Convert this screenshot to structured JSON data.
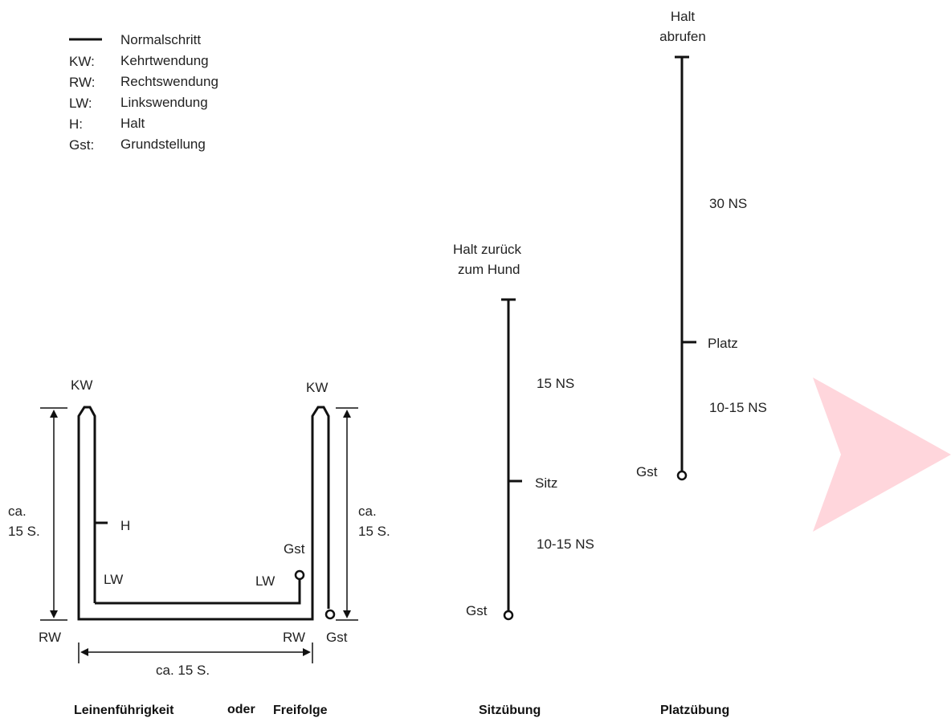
{
  "legend": {
    "line_label": "Normalschritt",
    "entries": [
      {
        "abbr": "KW:",
        "text": "Kehrtwendung"
      },
      {
        "abbr": "RW:",
        "text": "Rechtswendung"
      },
      {
        "abbr": "LW:",
        "text": "Linkswendung"
      },
      {
        "abbr": "H:",
        "text": "Halt"
      },
      {
        "abbr": "Gst:",
        "text": "Grundstellung"
      }
    ]
  },
  "leinen": {
    "kw_left": "KW",
    "kw_right": "KW",
    "ca_left_1": "ca.",
    "ca_left_2": "15 S.",
    "ca_right_1": "ca.",
    "ca_right_2": "15 S.",
    "h": "H",
    "gst_inner": "Gst",
    "lw_left": "LW",
    "lw_right": "LW",
    "rw_left": "RW",
    "rw_right": "RW",
    "gst_outer": "Gst",
    "ca_bottom": "ca. 15 S.",
    "caption_a": "Leinenführigkeit",
    "caption_or": "oder",
    "caption_b": "Freifolge"
  },
  "sitz": {
    "top_1": "Halt zurück",
    "top_2": "zum Hund",
    "ns_upper": "15 NS",
    "mark": "Sitz",
    "ns_lower": "10-15 NS",
    "gst": "Gst",
    "caption": "Sitzübung"
  },
  "platz": {
    "top_1": "Halt",
    "top_2": "abrufen",
    "ns_upper": "30 NS",
    "mark": "Platz",
    "ns_lower": "10-15 NS",
    "gst": "Gst",
    "caption": "Platzübung"
  },
  "colors": {
    "line": "#111111",
    "arrow": "#ffd6dc"
  },
  "icons": {
    "arrow": "right-arrow-shape"
  }
}
